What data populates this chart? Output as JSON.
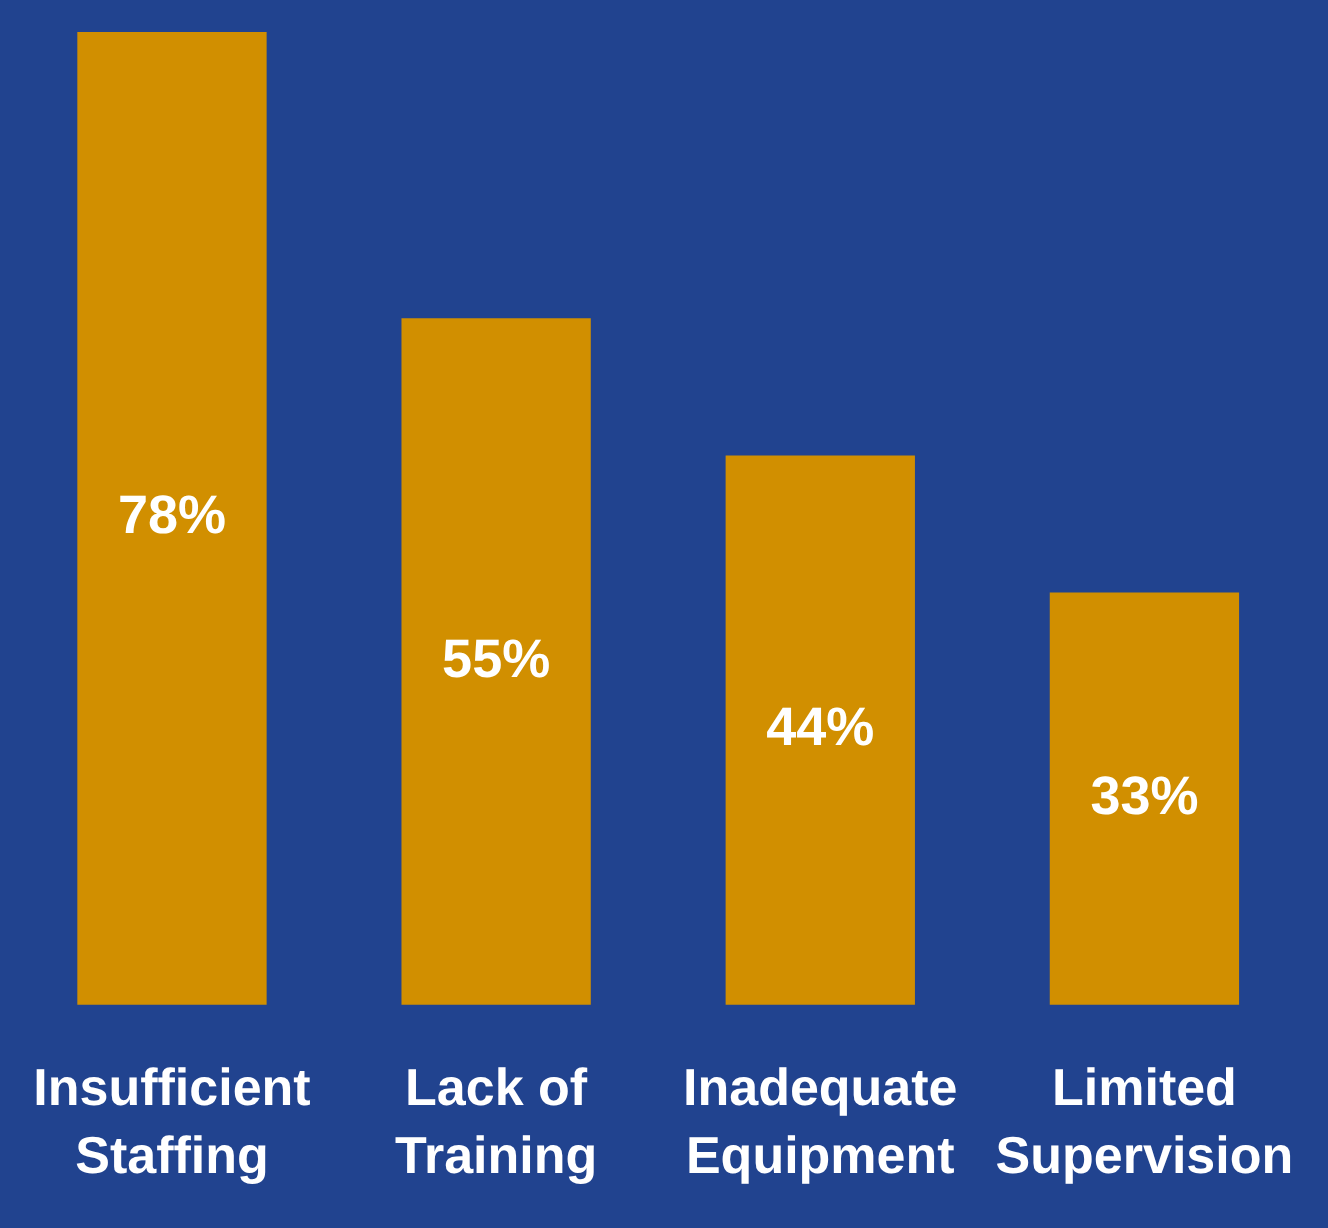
{
  "chart_data": {
    "type": "bar",
    "categories": [
      "Insufficient Staffing",
      "Lack of Training",
      "Inadequate Equipment",
      "Limited Supervision"
    ],
    "values": [
      78,
      55,
      44,
      33
    ],
    "value_labels": [
      "78%",
      "55%",
      "44%",
      "33%"
    ],
    "color": "#d18f00",
    "legend": false,
    "grid": false
  }
}
